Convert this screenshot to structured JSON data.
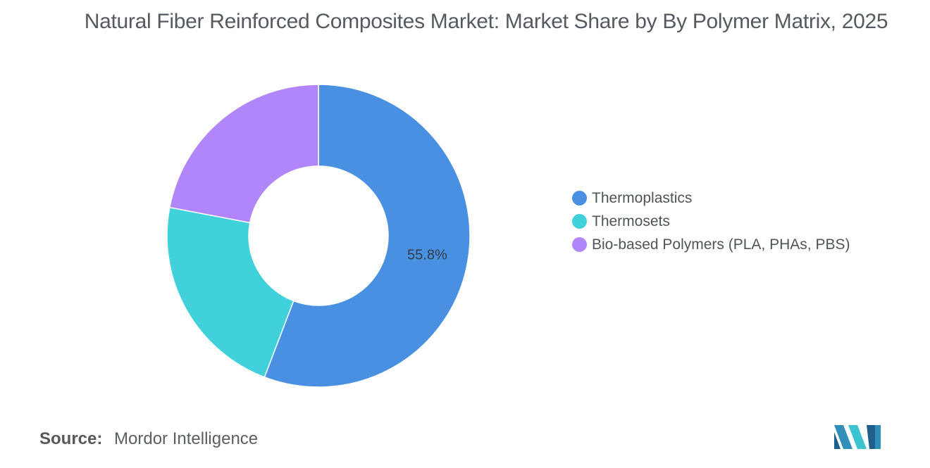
{
  "title": "Natural Fiber Reinforced Composites Market: Market Share by By Polymer Matrix, 2025",
  "source": {
    "label": "Source:",
    "value": "Mordor Intelligence"
  },
  "chart_data": {
    "type": "pie",
    "donut": true,
    "title": "Natural Fiber Reinforced Composites Market: Market Share by By Polymer Matrix, 2025",
    "legend_position": "right",
    "categories": [
      "Thermoplastics",
      "Thermosets",
      "Bio-based Polymers (PLA, PHAs, PBS)"
    ],
    "values": [
      55.8,
      22.2,
      22.0
    ],
    "colors": [
      "#4a90e2",
      "#40d1da",
      "#b186fb"
    ],
    "data_labels": [
      "55.8%",
      "",
      ""
    ]
  }
}
